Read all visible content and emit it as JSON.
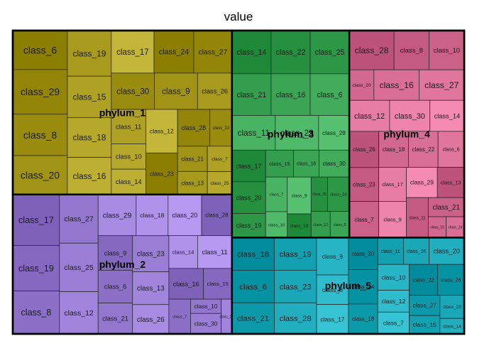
{
  "chart_data": {
    "type": "treemap",
    "title": "value",
    "groups": [
      {
        "name": "phylum_1",
        "color": "#a79a1c",
        "cells": [
          {
            "name": "class_6",
            "value": 34
          },
          {
            "name": "class_29",
            "value": 39
          },
          {
            "name": "class_8",
            "value": 36
          },
          {
            "name": "class_20",
            "value": 34
          },
          {
            "name": "class_19",
            "value": 32
          },
          {
            "name": "class_15",
            "value": 29
          },
          {
            "name": "class_18",
            "value": 28
          },
          {
            "name": "class_16",
            "value": 26
          },
          {
            "name": "class_17",
            "value": 29
          },
          {
            "name": "class_24",
            "value": 27
          },
          {
            "name": "class_27",
            "value": 26
          },
          {
            "name": "class_30",
            "value": 25
          },
          {
            "name": "class_9",
            "value": 25
          },
          {
            "name": "class_26",
            "value": 20
          },
          {
            "name": "class_11",
            "value": 19
          },
          {
            "name": "class_10",
            "value": 14
          },
          {
            "name": "class_14",
            "value": 14
          },
          {
            "name": "class_12",
            "value": 22
          },
          {
            "name": "class_23",
            "value": 21
          },
          {
            "name": "class_28",
            "value": 19
          },
          {
            "name": "class_22",
            "value": 13
          },
          {
            "name": "class_21",
            "value": 12
          },
          {
            "name": "class_13",
            "value": 11
          },
          {
            "name": "class_7",
            "value": 10
          },
          {
            "name": "class_25",
            "value": 9
          }
        ]
      },
      {
        "name": "phylum_2",
        "color": "#9a7ed6",
        "cells": [
          {
            "name": "class_17",
            "value": 38
          },
          {
            "name": "class_19",
            "value": 34
          },
          {
            "name": "class_8",
            "value": 32
          },
          {
            "name": "class_27",
            "value": 30
          },
          {
            "name": "class_25",
            "value": 30
          },
          {
            "name": "class_12",
            "value": 26
          },
          {
            "name": "class_29",
            "value": 25
          },
          {
            "name": "class_18",
            "value": 21
          },
          {
            "name": "class_20",
            "value": 22
          },
          {
            "name": "class_28",
            "value": 20
          },
          {
            "name": "class_9",
            "value": 19
          },
          {
            "name": "class_6",
            "value": 18
          },
          {
            "name": "class_21",
            "value": 17
          },
          {
            "name": "class_23",
            "value": 21
          },
          {
            "name": "class_13",
            "value": 19
          },
          {
            "name": "class_26",
            "value": 17
          },
          {
            "name": "class_14",
            "value": 15
          },
          {
            "name": "class_11",
            "value": 18
          },
          {
            "name": "class_16",
            "value": 17
          },
          {
            "name": "class_15",
            "value": 14
          },
          {
            "name": "class_7",
            "value": 12
          },
          {
            "name": "class_10",
            "value": 7
          },
          {
            "name": "class_30",
            "value": 10
          },
          {
            "name": "class_22",
            "value": 6
          }
        ]
      },
      {
        "name": "phylum_3",
        "color": "#3aa655",
        "cells": [
          {
            "name": "class_14",
            "value": 27
          },
          {
            "name": "class_22",
            "value": 27
          },
          {
            "name": "class_25",
            "value": 27
          },
          {
            "name": "class_21",
            "value": 26
          },
          {
            "name": "class_16",
            "value": 26
          },
          {
            "name": "class_6",
            "value": 26
          },
          {
            "name": "class_11",
            "value": 24
          },
          {
            "name": "class_23",
            "value": 24
          },
          {
            "name": "class_28",
            "value": 17
          },
          {
            "name": "class_17",
            "value": 17
          },
          {
            "name": "class_20",
            "value": 17
          },
          {
            "name": "class_19",
            "value": 13
          },
          {
            "name": "class_15",
            "value": 12
          },
          {
            "name": "class_18",
            "value": 11
          },
          {
            "name": "class_30",
            "value": 13
          },
          {
            "name": "class_7",
            "value": 12
          },
          {
            "name": "class_10",
            "value": 9
          },
          {
            "name": "class_9",
            "value": 14
          },
          {
            "name": "class_13",
            "value": 9
          },
          {
            "name": "class_29",
            "value": 9
          },
          {
            "name": "class_24",
            "value": 12
          },
          {
            "name": "class_12",
            "value": 8
          },
          {
            "name": "class_8",
            "value": 8
          }
        ]
      },
      {
        "name": "phylum_4",
        "color": "#d96e96",
        "cells": [
          {
            "name": "class_28",
            "value": 28
          },
          {
            "name": "class_8",
            "value": 22
          },
          {
            "name": "class_10",
            "value": 22
          },
          {
            "name": "class_20",
            "value": 12
          },
          {
            "name": "class_16",
            "value": 22
          },
          {
            "name": "class_27",
            "value": 22
          },
          {
            "name": "class_12",
            "value": 20
          },
          {
            "name": "class_30",
            "value": 20
          },
          {
            "name": "class_14",
            "value": 17
          },
          {
            "name": "class_26",
            "value": 17
          },
          {
            "name": "class_23",
            "value": 16
          },
          {
            "name": "class_7",
            "value": 17
          },
          {
            "name": "class_18",
            "value": 17
          },
          {
            "name": "class_22",
            "value": 17
          },
          {
            "name": "class_6",
            "value": 15
          },
          {
            "name": "class_17",
            "value": 15
          },
          {
            "name": "class_9",
            "value": 16
          },
          {
            "name": "class_29",
            "value": 15
          },
          {
            "name": "class_13",
            "value": 13
          },
          {
            "name": "class_11",
            "value": 14
          },
          {
            "name": "class_21",
            "value": 11
          },
          {
            "name": "class_15",
            "value": 6
          },
          {
            "name": "class_24",
            "value": 6
          }
        ]
      },
      {
        "name": "phylum_5",
        "color": "#1aa8b8",
        "cells": [
          {
            "name": "class_16",
            "value": 22
          },
          {
            "name": "class_6",
            "value": 22
          },
          {
            "name": "class_21",
            "value": 21
          },
          {
            "name": "class_19",
            "value": 22
          },
          {
            "name": "class_23",
            "value": 22
          },
          {
            "name": "class_28",
            "value": 21
          },
          {
            "name": "class_9",
            "value": 19
          },
          {
            "name": "class_8",
            "value": 15
          },
          {
            "name": "class_17",
            "value": 15
          },
          {
            "name": "class_30",
            "value": 15
          },
          {
            "name": "class_24",
            "value": 16
          },
          {
            "name": "class_18",
            "value": 14
          },
          {
            "name": "class_11",
            "value": 11
          },
          {
            "name": "class_25",
            "value": 11
          },
          {
            "name": "class_20",
            "value": 15
          },
          {
            "name": "class_10",
            "value": 13
          },
          {
            "name": "class_12",
            "value": 11
          },
          {
            "name": "class_7",
            "value": 11
          },
          {
            "name": "class_22",
            "value": 14
          },
          {
            "name": "class_26",
            "value": 13
          },
          {
            "name": "class_27",
            "value": 10
          },
          {
            "name": "class_15",
            "value": 9
          },
          {
            "name": "class_29",
            "value": 9
          },
          {
            "name": "class_14",
            "value": 6
          }
        ]
      }
    ]
  }
}
